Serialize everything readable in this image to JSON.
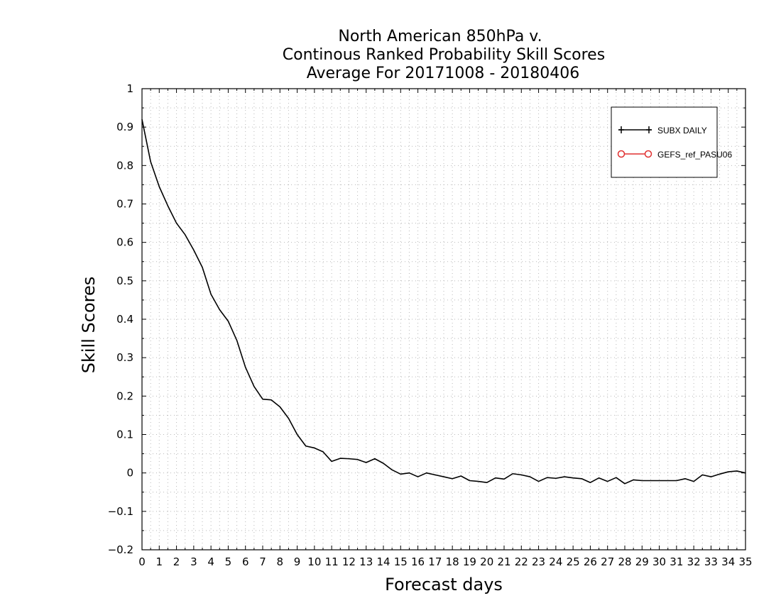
{
  "chart_data": {
    "type": "line",
    "title_lines": [
      "North American 850hPa v.",
      "Continous Ranked Probability Skill Scores",
      "Average For 20171008 - 20180406"
    ],
    "xlabel": "Forecast days",
    "ylabel": "Skill Scores",
    "xlim": [
      0,
      35
    ],
    "ylim": [
      -0.2,
      1
    ],
    "x_ticks": [
      0,
      1,
      2,
      3,
      4,
      5,
      6,
      7,
      8,
      9,
      10,
      11,
      12,
      13,
      14,
      15,
      16,
      17,
      18,
      19,
      20,
      21,
      22,
      23,
      24,
      25,
      26,
      27,
      28,
      29,
      30,
      31,
      32,
      33,
      34,
      35
    ],
    "y_ticks": [
      "−0.2",
      "−0.1",
      "0",
      "0.1",
      "0.2",
      "0.3",
      "0.4",
      "0.5",
      "0.6",
      "0.7",
      "0.8",
      "0.9",
      "1"
    ],
    "grid": true,
    "legend_position": "top-right",
    "series": [
      {
        "name": "SUBX DAILY",
        "color": "#000000",
        "marker": "plus",
        "x": [
          0,
          0.5,
          1,
          1.5,
          2,
          2.5,
          3,
          3.5,
          4,
          4.5,
          5,
          5.5,
          6,
          6.5,
          7,
          7.5,
          8,
          8.5,
          9,
          9.5,
          10,
          10.5,
          11,
          11.5,
          12,
          12.5,
          13,
          13.5,
          14,
          14.5,
          15,
          15.5,
          16,
          16.5,
          17,
          17.5,
          18,
          18.5,
          19,
          19.5,
          20,
          20.5,
          21,
          21.5,
          22,
          22.5,
          23,
          23.5,
          24,
          24.5,
          25,
          25.5,
          26,
          26.5,
          27,
          27.5,
          28,
          28.5,
          29,
          29.5,
          30,
          30.5,
          31,
          31.5,
          32,
          32.5,
          33,
          33.5,
          34,
          34.5,
          35
        ],
        "values": [
          0.92,
          0.81,
          0.745,
          0.695,
          0.65,
          0.62,
          0.58,
          0.535,
          0.465,
          0.425,
          0.395,
          0.345,
          0.275,
          0.225,
          0.192,
          0.19,
          0.172,
          0.142,
          0.1,
          0.07,
          0.065,
          0.055,
          0.03,
          0.038,
          0.037,
          0.035,
          0.027,
          0.037,
          0.025,
          0.008,
          -0.003,
          0.0,
          -0.01,
          0.0,
          -0.005,
          -0.01,
          -0.015,
          -0.008,
          -0.02,
          -0.022,
          -0.025,
          -0.013,
          -0.016,
          -0.002,
          -0.005,
          -0.01,
          -0.022,
          -0.012,
          -0.014,
          -0.01,
          -0.013,
          -0.015,
          -0.025,
          -0.013,
          -0.022,
          -0.012,
          -0.028,
          -0.018,
          -0.02,
          -0.02,
          -0.02,
          -0.02,
          -0.02,
          -0.015,
          -0.022,
          -0.005,
          -0.01,
          -0.003,
          0.003,
          0.005,
          0.0
        ]
      },
      {
        "name": "GEFS_ref_PASU06",
        "color": "#e03030",
        "marker": "circle",
        "x": [],
        "values": []
      }
    ]
  }
}
